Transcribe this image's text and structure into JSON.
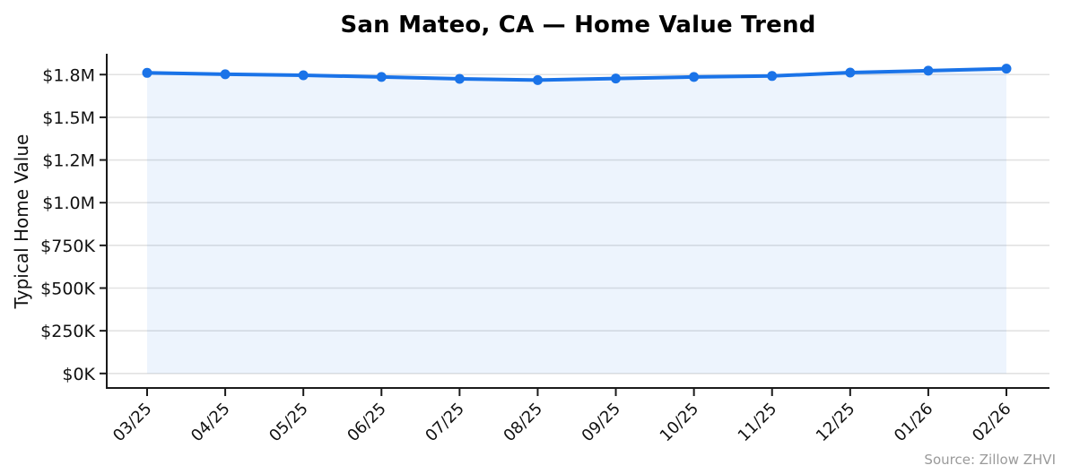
{
  "chart_data": {
    "type": "line",
    "title": "San Mateo, CA — Home Value Trend",
    "ylabel": "Typical Home Value",
    "xlabel": "",
    "source": "Source: Zillow ZHVI",
    "categories": [
      "03/25",
      "04/25",
      "05/25",
      "06/25",
      "07/25",
      "08/25",
      "09/25",
      "10/25",
      "11/25",
      "12/25",
      "01/26",
      "02/26"
    ],
    "series": [
      {
        "name": "Typical Home Value",
        "values": [
          1760000,
          1752000,
          1746000,
          1736000,
          1725000,
          1718000,
          1727000,
          1736000,
          1742000,
          1762000,
          1773000,
          1785000
        ]
      }
    ],
    "yticks": {
      "values": [
        0,
        250000,
        500000,
        750000,
        1000000,
        1250000,
        1500000,
        1750000
      ],
      "labels": [
        "$0K",
        "$250K",
        "$500K",
        "$750K",
        "$1.0M",
        "$1.2M",
        "$1.5M",
        "$1.8M"
      ]
    },
    "ylim": [
      -85000,
      1872000
    ],
    "grid": "horizontal",
    "legend": "none",
    "marker": "circle",
    "x_tick_rotation_deg": 45,
    "colors": {
      "line": "#1a73e8",
      "marker": "#1a73e8",
      "area_fill": "#1a73e8",
      "area_fill_opacity": "0.08",
      "grid": "#e2e2e2",
      "axis": "#1a1a1a",
      "tick_text": "#111111",
      "title_text": "#000000",
      "source_text": "#9a9a9a"
    }
  }
}
